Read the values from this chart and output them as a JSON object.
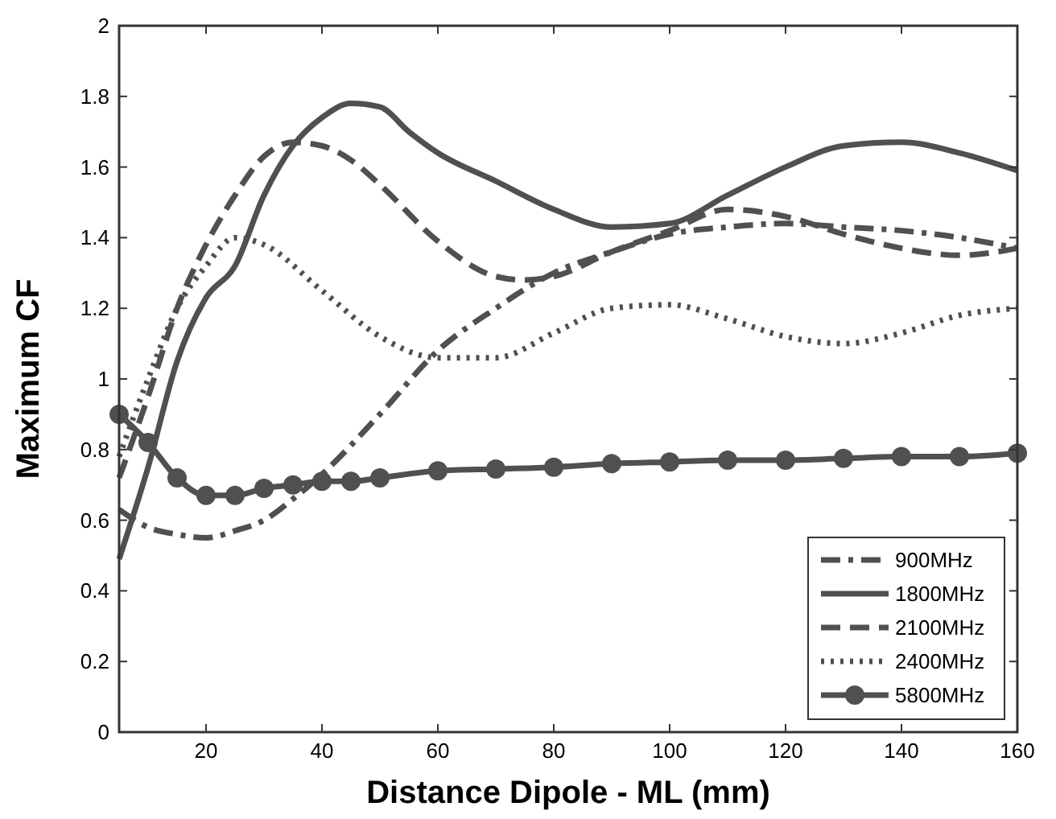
{
  "chart_data": {
    "type": "line",
    "xlabel": "Distance Dipole - ML (mm)",
    "ylabel": "Maximum CF",
    "xlim": [
      5,
      160
    ],
    "ylim": [
      0,
      2
    ],
    "xticks": [
      20,
      40,
      60,
      80,
      100,
      120,
      140,
      160
    ],
    "yticks": [
      0,
      0.2,
      0.4,
      0.6,
      0.8,
      1,
      1.2,
      1.4,
      1.6,
      1.8,
      2
    ],
    "grid": false,
    "legend": "bottom right",
    "series": [
      {
        "name": "900MHz",
        "color": "#505050",
        "line_style": "dashdot",
        "marker": "none",
        "x": [
          5,
          10,
          15,
          20,
          25,
          30,
          35,
          40,
          50,
          60,
          70,
          80,
          90,
          100,
          110,
          120,
          130,
          140,
          150,
          160
        ],
        "values": [
          0.63,
          0.58,
          0.56,
          0.55,
          0.57,
          0.6,
          0.66,
          0.73,
          0.9,
          1.08,
          1.2,
          1.3,
          1.36,
          1.41,
          1.43,
          1.44,
          1.43,
          1.42,
          1.4,
          1.37
        ]
      },
      {
        "name": "1800MHz",
        "color": "#505050",
        "line_style": "solid",
        "marker": "none",
        "x": [
          5,
          10,
          15,
          20,
          25,
          30,
          35,
          40,
          45,
          50,
          55,
          60,
          70,
          80,
          90,
          100,
          110,
          120,
          130,
          140,
          150,
          160
        ],
        "values": [
          0.49,
          0.75,
          1.05,
          1.23,
          1.32,
          1.52,
          1.66,
          1.74,
          1.78,
          1.77,
          1.7,
          1.64,
          1.56,
          1.48,
          1.43,
          1.44,
          1.52,
          1.6,
          1.66,
          1.67,
          1.64,
          1.59
        ]
      },
      {
        "name": "2100MHz",
        "color": "#505050",
        "line_style": "dashed",
        "marker": "none",
        "x": [
          5,
          10,
          15,
          20,
          25,
          30,
          35,
          40,
          45,
          50,
          60,
          70,
          75,
          80,
          90,
          100,
          110,
          120,
          130,
          140,
          150,
          160
        ],
        "values": [
          0.72,
          0.95,
          1.2,
          1.38,
          1.52,
          1.63,
          1.67,
          1.66,
          1.62,
          1.55,
          1.39,
          1.29,
          1.28,
          1.29,
          1.36,
          1.42,
          1.48,
          1.46,
          1.41,
          1.37,
          1.35,
          1.37
        ]
      },
      {
        "name": "2400MHz",
        "color": "#505050",
        "line_style": "dotted",
        "marker": "none",
        "x": [
          5,
          10,
          15,
          20,
          25,
          30,
          40,
          50,
          60,
          70,
          80,
          90,
          100,
          110,
          120,
          130,
          140,
          150,
          160
        ],
        "values": [
          0.78,
          1.0,
          1.2,
          1.32,
          1.4,
          1.38,
          1.25,
          1.12,
          1.06,
          1.06,
          1.13,
          1.2,
          1.21,
          1.17,
          1.12,
          1.1,
          1.13,
          1.18,
          1.2
        ]
      },
      {
        "name": "5800MHz",
        "color": "#505050",
        "line_style": "solid",
        "marker": "circle",
        "x": [
          5,
          10,
          15,
          20,
          25,
          30,
          35,
          40,
          45,
          50,
          60,
          70,
          80,
          90,
          100,
          110,
          120,
          130,
          140,
          150,
          160
        ],
        "values": [
          0.9,
          0.82,
          0.72,
          0.67,
          0.67,
          0.69,
          0.7,
          0.71,
          0.71,
          0.72,
          0.74,
          0.745,
          0.75,
          0.76,
          0.765,
          0.77,
          0.77,
          0.775,
          0.78,
          0.78,
          0.79
        ]
      }
    ]
  }
}
